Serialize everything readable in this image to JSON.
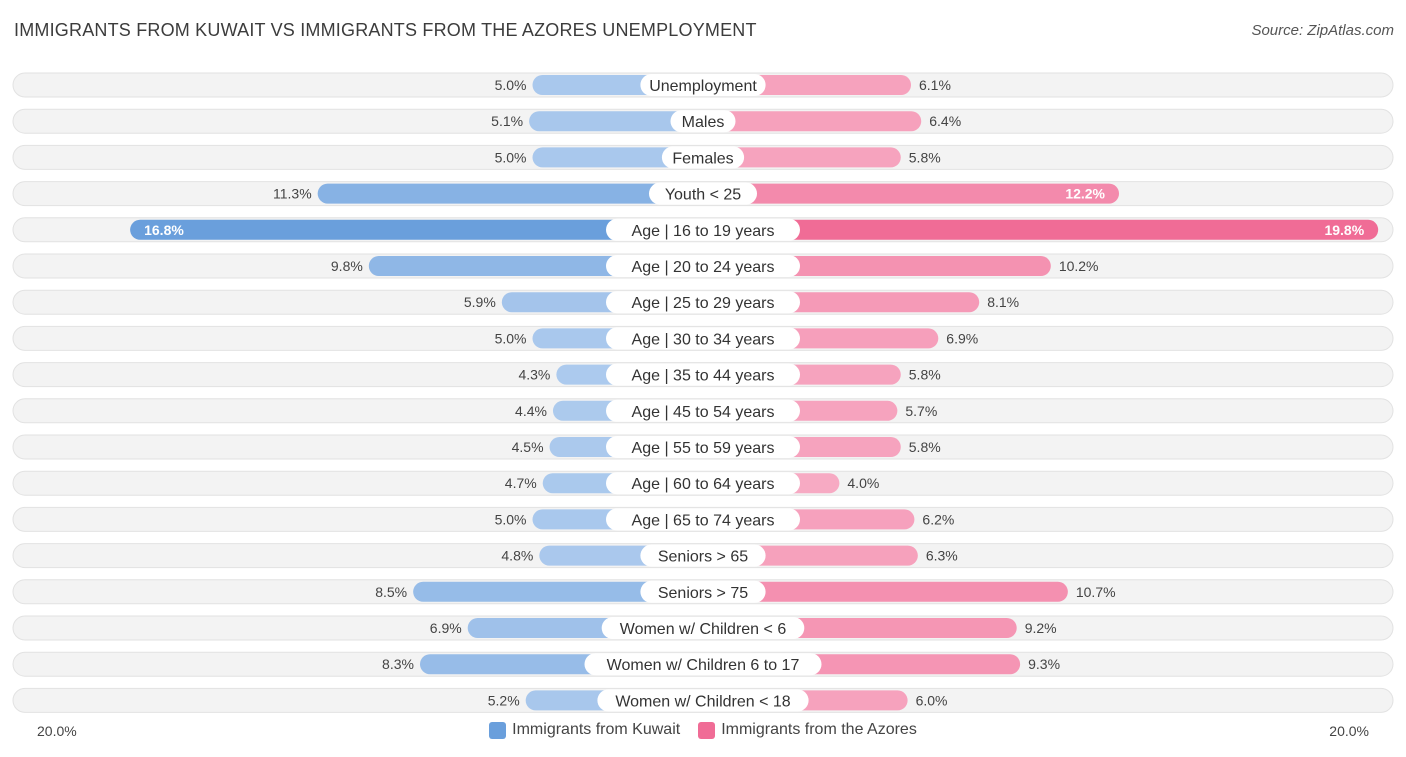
{
  "title": "IMMIGRANTS FROM KUWAIT VS IMMIGRANTS FROM THE AZORES UNEMPLOYMENT",
  "source": "Source: ZipAtlas.com",
  "axis": {
    "left_label": "20.0%",
    "right_label": "20.0%"
  },
  "legend": {
    "left": {
      "label": "Immigrants from Kuwait",
      "color": "#6a9fdc"
    },
    "right": {
      "label": "Immigrants from the Azores",
      "color": "#f06c96"
    }
  },
  "chart_data": {
    "type": "bar",
    "orientation": "diverging-horizontal",
    "xlim": [
      0,
      20
    ],
    "categories": [
      "Unemployment",
      "Males",
      "Females",
      "Youth < 25",
      "Age | 16 to 19 years",
      "Age | 20 to 24 years",
      "Age | 25 to 29 years",
      "Age | 30 to 34 years",
      "Age | 35 to 44 years",
      "Age | 45 to 54 years",
      "Age | 55 to 59 years",
      "Age | 60 to 64 years",
      "Age | 65 to 74 years",
      "Seniors > 65",
      "Seniors > 75",
      "Women w/ Children < 6",
      "Women w/ Children 6 to 17",
      "Women w/ Children < 18"
    ],
    "series": [
      {
        "name": "Immigrants from Kuwait",
        "values": [
          5.0,
          5.1,
          5.0,
          11.3,
          16.8,
          9.8,
          5.9,
          5.0,
          4.3,
          4.4,
          4.5,
          4.7,
          5.0,
          4.8,
          8.5,
          6.9,
          8.3,
          5.2
        ],
        "labels": [
          "5.0%",
          "5.1%",
          "5.0%",
          "11.3%",
          "16.8%",
          "9.8%",
          "5.9%",
          "5.0%",
          "4.3%",
          "4.4%",
          "4.5%",
          "4.7%",
          "5.0%",
          "4.8%",
          "8.5%",
          "6.9%",
          "8.3%",
          "5.2%"
        ]
      },
      {
        "name": "Immigrants from the Azores",
        "values": [
          6.1,
          6.4,
          5.8,
          12.2,
          19.8,
          10.2,
          8.1,
          6.9,
          5.8,
          5.7,
          5.8,
          4.0,
          6.2,
          6.3,
          10.7,
          9.2,
          9.3,
          6.0
        ],
        "labels": [
          "6.1%",
          "6.4%",
          "5.8%",
          "12.2%",
          "19.8%",
          "10.2%",
          "8.1%",
          "6.9%",
          "5.8%",
          "5.7%",
          "5.8%",
          "4.0%",
          "6.2%",
          "6.3%",
          "10.7%",
          "9.2%",
          "9.3%",
          "6.0%"
        ]
      }
    ]
  }
}
